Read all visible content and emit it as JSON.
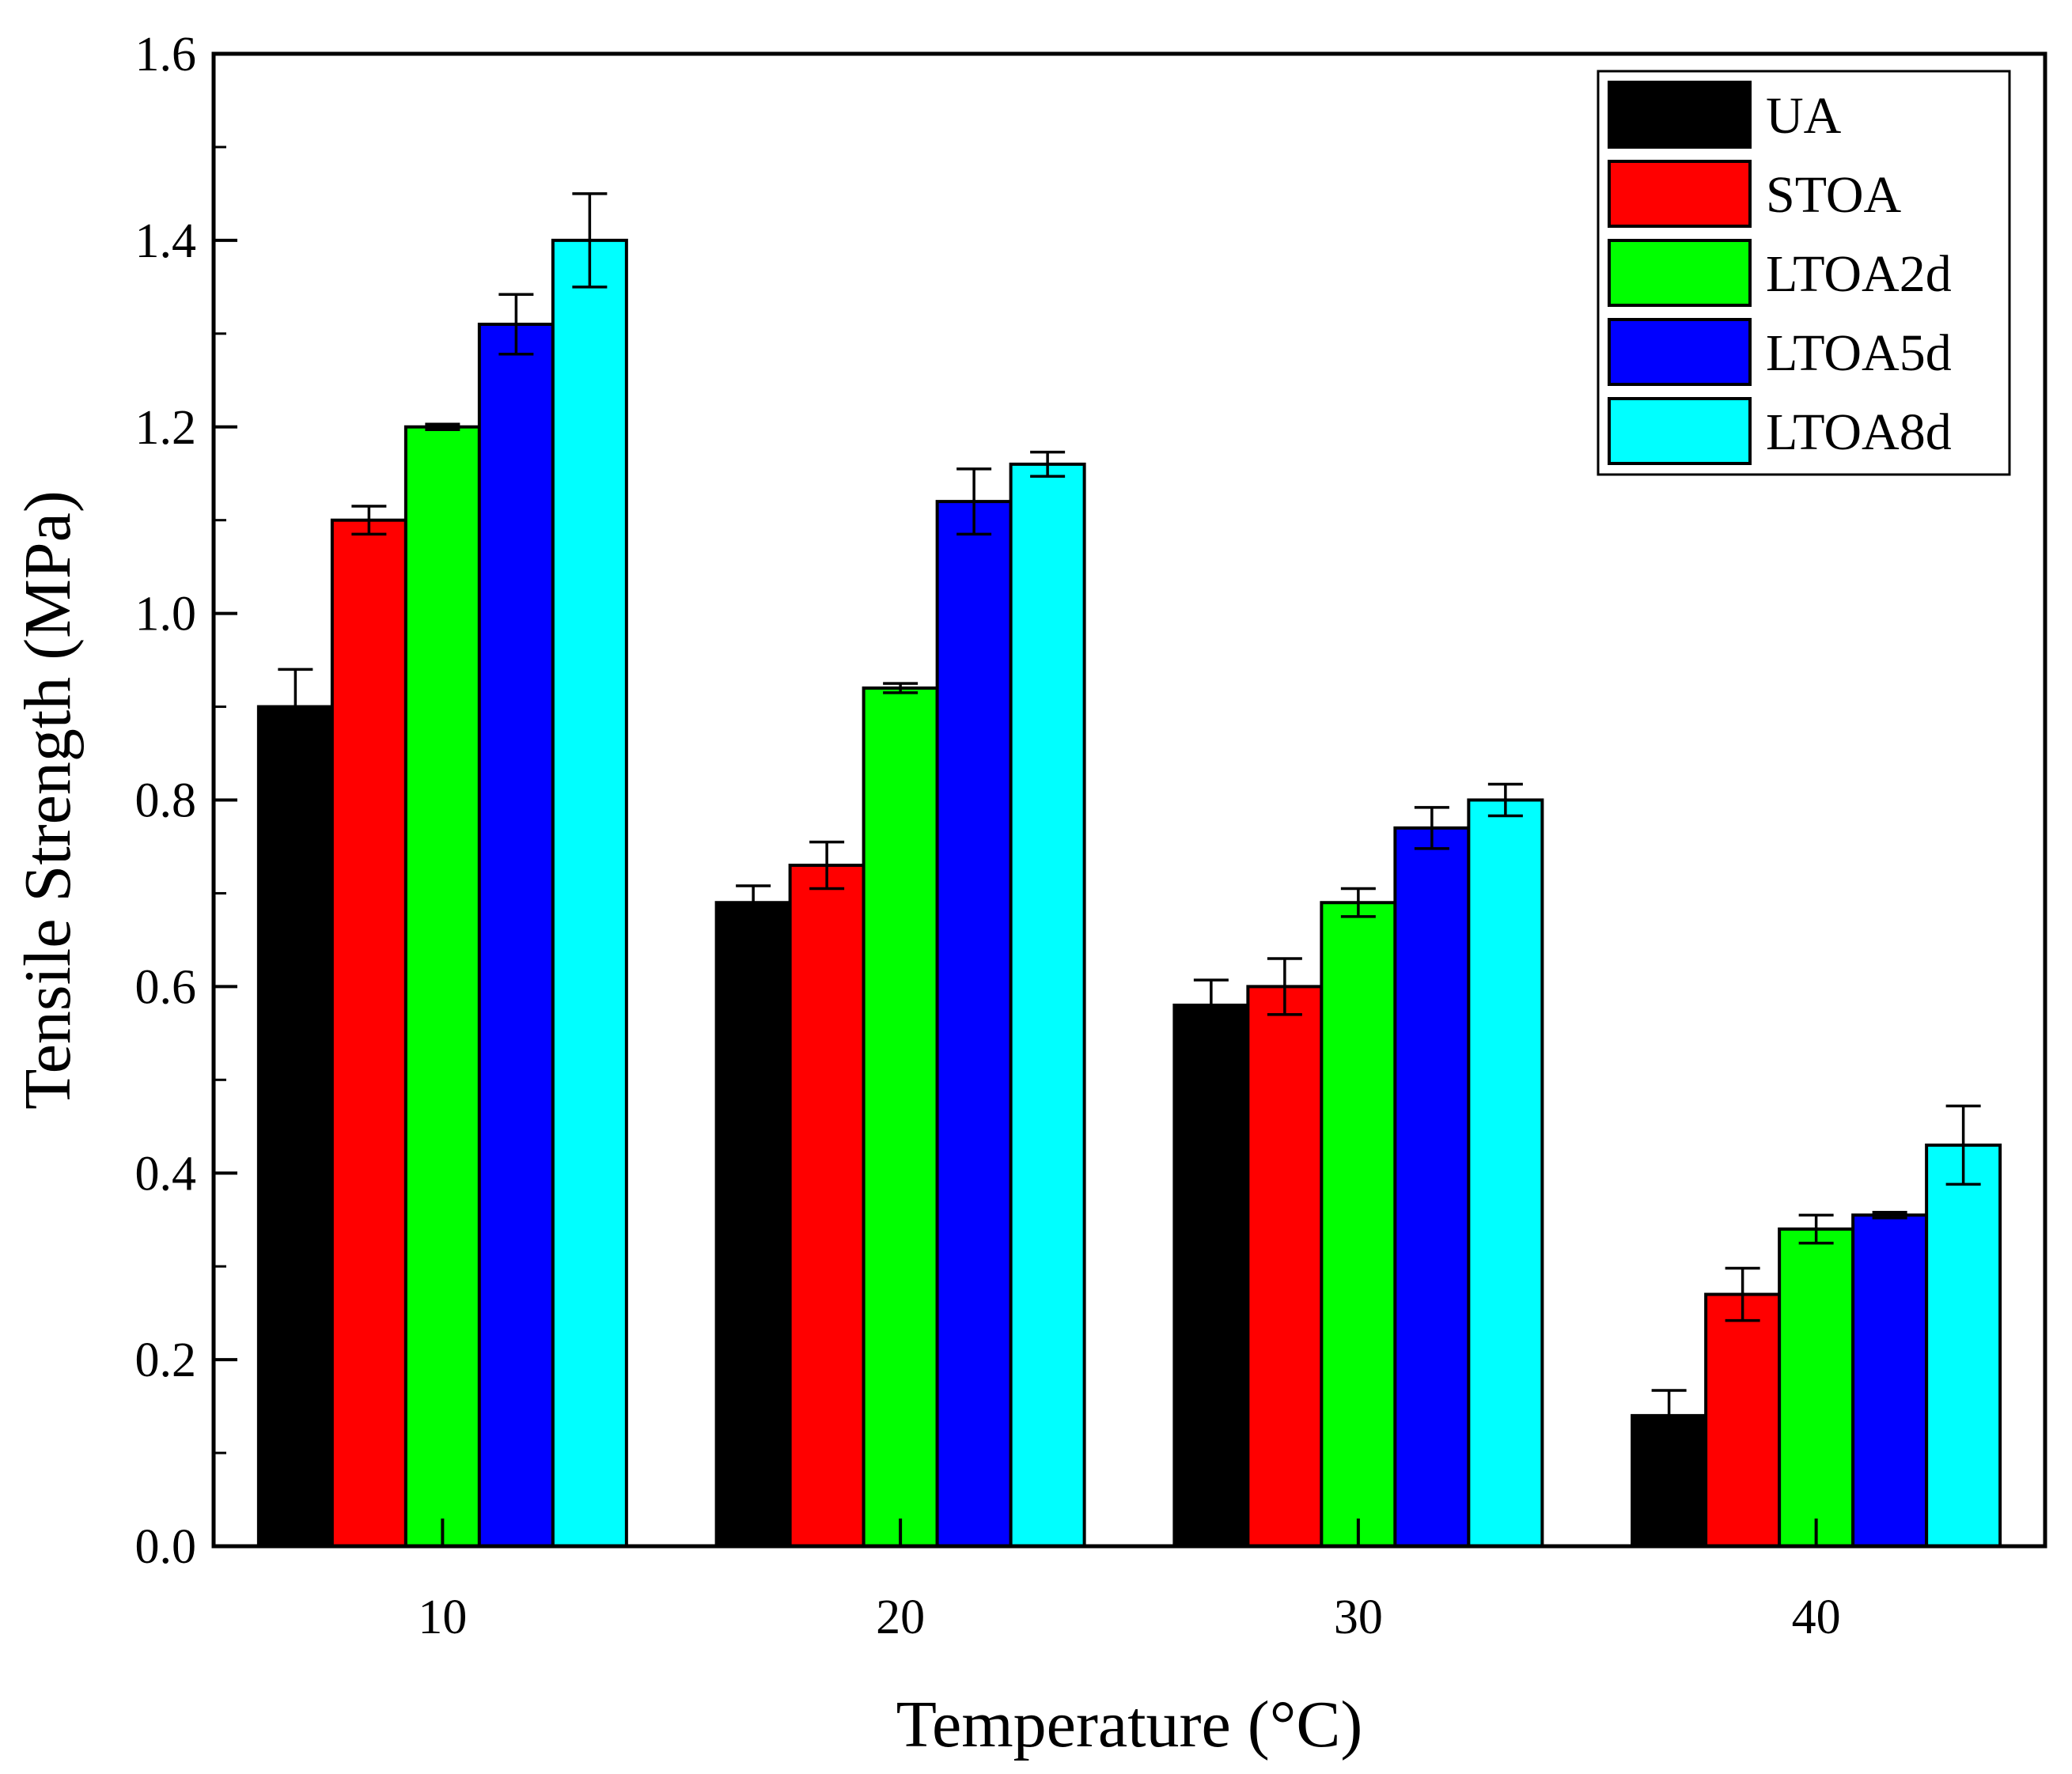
{
  "chart_data": {
    "type": "bar",
    "title": "",
    "xlabel": "Temperature (°C)",
    "ylabel": "Tensile Strength (MPa)",
    "ylim": [
      0,
      1.6
    ],
    "yticks": [
      "0.0",
      "0.2",
      "0.4",
      "0.6",
      "0.8",
      "1.0",
      "1.2",
      "1.4",
      "1.6"
    ],
    "categories": [
      "10",
      "20",
      "30",
      "40"
    ],
    "legend_position": "top-right",
    "series": [
      {
        "name": "UA",
        "color": "#000000",
        "values": [
          0.9,
          0.69,
          0.58,
          0.14
        ],
        "errors": [
          0.04,
          0.018,
          0.027,
          0.027
        ]
      },
      {
        "name": "STOA",
        "color": "#ff0000",
        "values": [
          1.1,
          0.73,
          0.6,
          0.27
        ],
        "errors": [
          0.015,
          0.025,
          0.03,
          0.028
        ]
      },
      {
        "name": "LTOA2d",
        "color": "#00ff00",
        "values": [
          1.2,
          0.92,
          0.69,
          0.34
        ],
        "errors": [
          0.003,
          0.005,
          0.015,
          0.015
        ]
      },
      {
        "name": "LTOA5d",
        "color": "#0000ff",
        "values": [
          1.31,
          1.12,
          0.77,
          0.355
        ],
        "errors": [
          0.032,
          0.035,
          0.022,
          0.003
        ]
      },
      {
        "name": "LTOA8d",
        "color": "#00ffff",
        "values": [
          1.4,
          1.16,
          0.8,
          0.43
        ],
        "errors": [
          0.05,
          0.013,
          0.017,
          0.042
        ]
      }
    ]
  }
}
